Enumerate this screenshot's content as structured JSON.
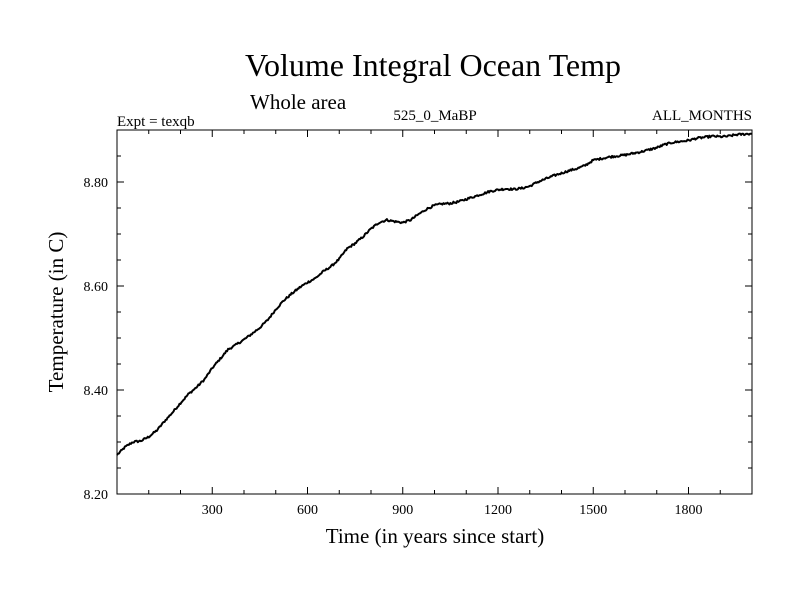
{
  "chart_data": {
    "type": "line",
    "title": "Volume Integral Ocean Temp",
    "subtitle": "Whole area",
    "annotations": {
      "experiment": "Expt = texqb",
      "period": "525_0_MaBP",
      "months": "ALL_MONTHS"
    },
    "xlabel": "Time (in years since start)",
    "ylabel": "Temperature (in C)",
    "xlim": [
      0,
      2000
    ],
    "ylim": [
      8.2,
      8.9
    ],
    "xticks": [
      300,
      600,
      900,
      1200,
      1500,
      1800
    ],
    "xtick_labels": [
      "300",
      "600",
      "900",
      "1200",
      "1500",
      "1800"
    ],
    "yticks": [
      8.2,
      8.4,
      8.6,
      8.8
    ],
    "ytick_labels": [
      "8.20",
      "8.40",
      "8.60",
      "8.80"
    ],
    "grid": false,
    "legend": "none",
    "line_color": "#000000",
    "series": [
      {
        "x": [
          0,
          25,
          50,
          75,
          100,
          125,
          150,
          175,
          200,
          225,
          250,
          275,
          300,
          325,
          350,
          375,
          400,
          425,
          450,
          475,
          500,
          525,
          550,
          575,
          600,
          625,
          650,
          675,
          700,
          725,
          750,
          775,
          800,
          825,
          850,
          875,
          900,
          925,
          950,
          975,
          1000,
          1025,
          1050,
          1075,
          1100,
          1125,
          1150,
          1175,
          1200,
          1225,
          1250,
          1275,
          1300,
          1325,
          1350,
          1375,
          1400,
          1425,
          1450,
          1475,
          1500,
          1525,
          1550,
          1575,
          1600,
          1625,
          1650,
          1675,
          1700,
          1725,
          1750,
          1775,
          1800,
          1825,
          1850,
          1875,
          1900,
          1925,
          1950,
          1975,
          2000
        ],
        "y": [
          8.275,
          8.29,
          8.3,
          8.302,
          8.31,
          8.322,
          8.34,
          8.357,
          8.375,
          8.392,
          8.405,
          8.42,
          8.442,
          8.46,
          8.478,
          8.487,
          8.497,
          8.508,
          8.52,
          8.535,
          8.555,
          8.572,
          8.585,
          8.597,
          8.607,
          8.615,
          8.628,
          8.638,
          8.652,
          8.672,
          8.682,
          8.695,
          8.71,
          8.722,
          8.727,
          8.724,
          8.722,
          8.727,
          8.738,
          8.748,
          8.755,
          8.758,
          8.759,
          8.762,
          8.767,
          8.772,
          8.777,
          8.782,
          8.785,
          8.787,
          8.786,
          8.788,
          8.792,
          8.8,
          8.806,
          8.812,
          8.817,
          8.822,
          8.826,
          8.832,
          8.842,
          8.845,
          8.848,
          8.85,
          8.852,
          8.855,
          8.858,
          8.862,
          8.866,
          8.872,
          8.876,
          8.878,
          8.88,
          8.884,
          8.886,
          8.888,
          8.887,
          8.888,
          8.891,
          8.892,
          8.893
        ]
      }
    ]
  }
}
